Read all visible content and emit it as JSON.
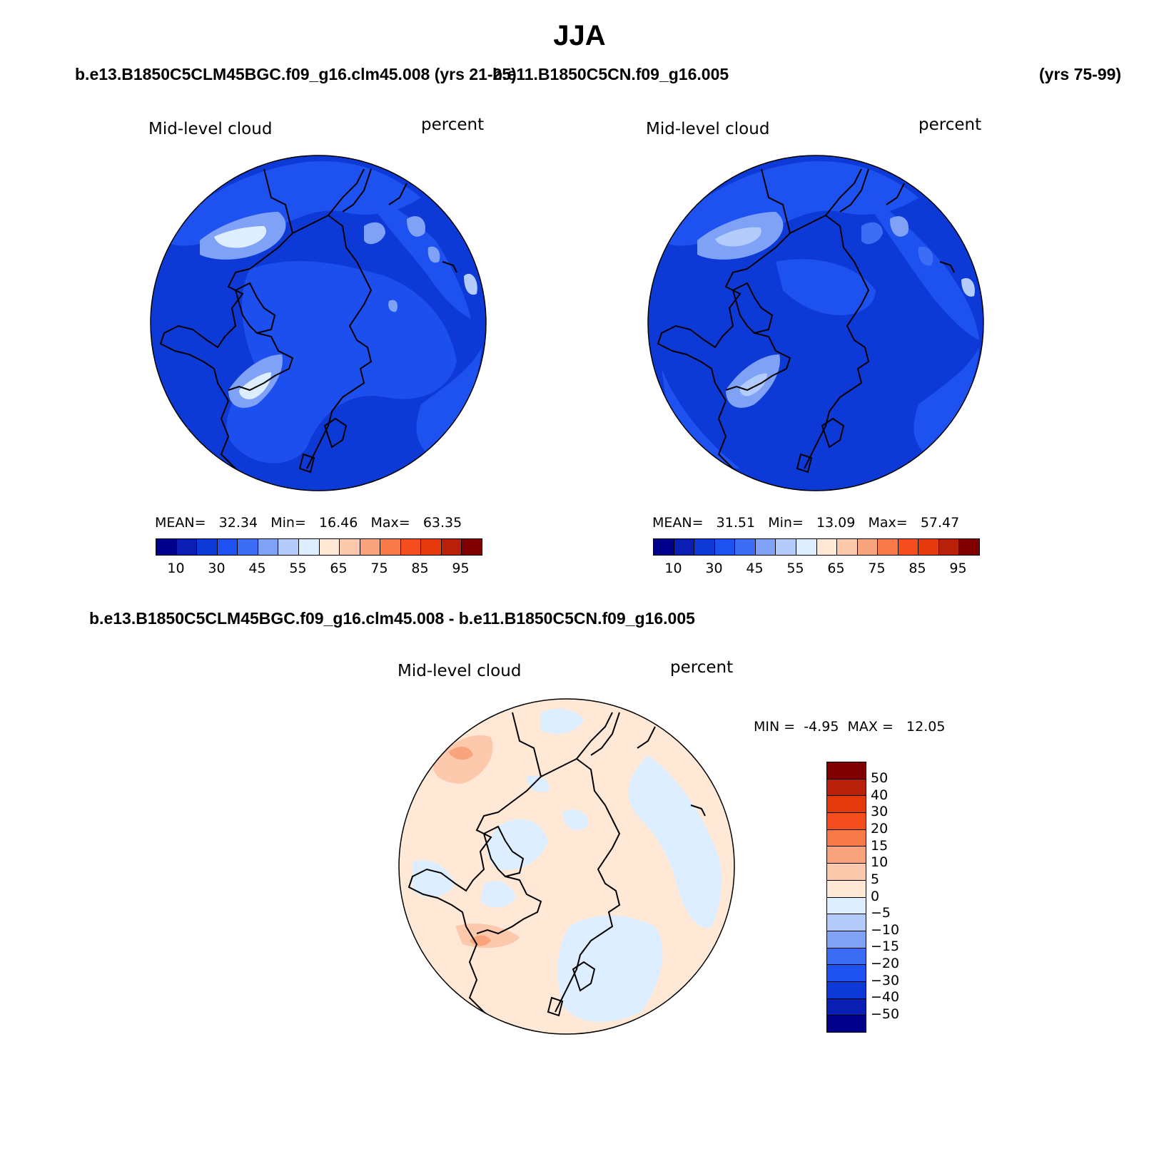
{
  "page": {
    "title": "JJA",
    "case1_title": "b.e13.B1850C5CLM45BGC.f09_g16.clm45.008 (yrs 21-25)",
    "case1_title_overprint": "(yrs 21-25)",
    "case2_title": "b.e11.B1850C5CN.f09_g16.005",
    "case2_years": "(yrs 75-99)",
    "diff_title": "b.e13.B1850C5CLM45BGC.f09_g16.clm45.008 - b.e11.B1850C5CN.f09_g16.005"
  },
  "panels": {
    "case1": {
      "variable": "Mid-level cloud",
      "units": "percent",
      "stats": {
        "mean_label": "MEAN=",
        "mean": "32.34",
        "min_label": "Min=",
        "min": "16.46",
        "max_label": "Max=",
        "max": "63.35"
      }
    },
    "case2": {
      "variable": "Mid-level cloud",
      "units": "percent",
      "stats": {
        "mean_label": "MEAN=",
        "mean": "31.51",
        "min_label": "Min=",
        "min": "13.09",
        "max_label": "Max=",
        "max": "57.47"
      }
    },
    "diff": {
      "variable": "Mid-level cloud",
      "units": "percent",
      "stats": {
        "min_label": "MIN =",
        "min": "-4.95",
        "max_label": "MAX =",
        "max": "12.05"
      }
    }
  },
  "colorbars": {
    "abs": {
      "colors": [
        "#00008b",
        "#0a1eb4",
        "#0d3ad6",
        "#1e52f0",
        "#3c6ef5",
        "#7fa2f7",
        "#b3ccfb",
        "#dceeff",
        "#ffe8d6",
        "#fcc9ad",
        "#f9a47c",
        "#f77a48",
        "#f54e1e",
        "#e43a0c",
        "#b8200a",
        "#800000"
      ],
      "tick_labels": [
        "10",
        "30",
        "45",
        "55",
        "65",
        "75",
        "85",
        "95"
      ]
    },
    "diff": {
      "colors": [
        "#800000",
        "#b8200a",
        "#e43a0c",
        "#f54e1e",
        "#f77a48",
        "#f9a47c",
        "#fcc9ad",
        "#ffe8d6",
        "#dceeff",
        "#b3ccfb",
        "#7fa2f7",
        "#3c6ef5",
        "#1e52f0",
        "#0d3ad6",
        "#0a1eb4",
        "#00008b"
      ],
      "tick_labels": [
        "50",
        "40",
        "30",
        "20",
        "15",
        "10",
        "5",
        "0",
        "−5",
        "−10",
        "−15",
        "−20",
        "−30",
        "−40",
        "−50"
      ]
    }
  },
  "maps": {
    "projection": "north-polar-stereographic",
    "coastline_color": "#000000",
    "case1_base_color": "#0d3ad6",
    "case2_base_color": "#0d3ad6",
    "diff_base_color": "#ffe8d6"
  }
}
